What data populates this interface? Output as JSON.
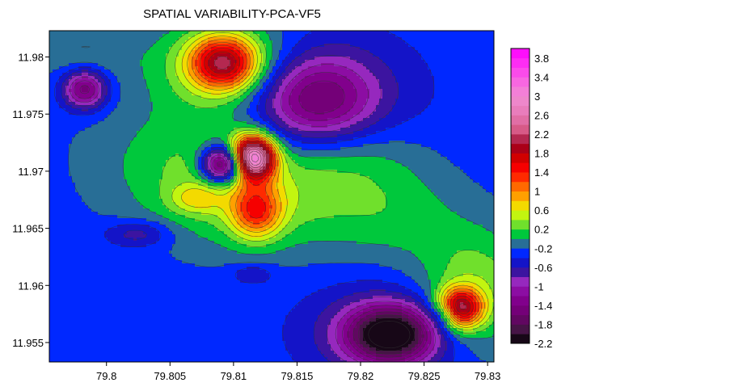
{
  "chart_data": {
    "type": "heatmap",
    "title": "SPATIAL VARIABILITY-PCA-VF5",
    "xlabel": "",
    "ylabel": "",
    "xlim": [
      79.7955,
      79.8305
    ],
    "ylim": [
      11.9533,
      11.9823
    ],
    "x_ticks": [
      "79.8",
      "79.805",
      "79.81",
      "79.815",
      "79.82",
      "79.825",
      "79.83"
    ],
    "x_tick_values": [
      79.8,
      79.805,
      79.81,
      79.815,
      79.82,
      79.825,
      79.83
    ],
    "y_ticks": [
      "11.98",
      "11.975",
      "11.97",
      "11.965",
      "11.96",
      "11.955"
    ],
    "y_tick_values": [
      11.98,
      11.975,
      11.97,
      11.965,
      11.96,
      11.955
    ],
    "colorbar": {
      "levels": [
        -2.2,
        -2.0,
        -1.8,
        -1.6,
        -1.4,
        -1.2,
        -1.0,
        -0.8,
        -0.6,
        -0.4,
        -0.2,
        0.0,
        0.2,
        0.4,
        0.6,
        0.8,
        1.0,
        1.2,
        1.4,
        1.6,
        1.8,
        2.0,
        2.2,
        2.4,
        2.6,
        2.8,
        3.0,
        3.2,
        3.4,
        3.6,
        3.8,
        4.0
      ],
      "labels": [
        "3.8",
        "3.4",
        "3",
        "2.6",
        "2.2",
        "1.8",
        "1.4",
        "1",
        "0.6",
        "0.2",
        "-0.2",
        "-0.6",
        "-1",
        "-1.4",
        "-1.8",
        "-2.2"
      ],
      "label_values": [
        3.8,
        3.4,
        3.0,
        2.6,
        2.2,
        1.8,
        1.4,
        1.0,
        0.6,
        0.2,
        -0.2,
        -0.6,
        -1.0,
        -1.4,
        -1.8,
        -2.2
      ]
    },
    "base_value": -0.3,
    "features": [
      {
        "x": 79.8092,
        "y": 11.9795,
        "amp": 1.7,
        "sx": 0.0018,
        "sy": 0.0016
      },
      {
        "x": 79.8095,
        "y": 11.9792,
        "amp": 0.9,
        "sx": 0.004,
        "sy": 0.003
      },
      {
        "x": 79.8165,
        "y": 11.9763,
        "amp": -1.1,
        "sx": 0.0032,
        "sy": 0.0026
      },
      {
        "x": 79.8155,
        "y": 11.9768,
        "amp": -0.4,
        "sx": 0.006,
        "sy": 0.004
      },
      {
        "x": 79.7983,
        "y": 11.9772,
        "amp": -1.3,
        "sx": 0.0012,
        "sy": 0.0012
      },
      {
        "x": 79.8115,
        "y": 11.9712,
        "amp": 3.2,
        "sx": 0.0012,
        "sy": 0.0013
      },
      {
        "x": 79.8118,
        "y": 11.9665,
        "amp": 1.2,
        "sx": 0.0014,
        "sy": 0.0017
      },
      {
        "x": 79.8093,
        "y": 11.9706,
        "amp": -2.2,
        "sx": 0.0012,
        "sy": 0.0011
      },
      {
        "x": 79.812,
        "y": 11.968,
        "amp": 0.6,
        "sx": 0.0055,
        "sy": 0.0035
      },
      {
        "x": 79.806,
        "y": 11.9715,
        "amp": 0.35,
        "sx": 0.0055,
        "sy": 0.004
      },
      {
        "x": 79.807,
        "y": 11.9676,
        "amp": 0.5,
        "sx": 0.0014,
        "sy": 0.0009
      },
      {
        "x": 79.8278,
        "y": 11.958,
        "amp": 2.1,
        "sx": 0.0012,
        "sy": 0.0012
      },
      {
        "x": 79.829,
        "y": 11.9595,
        "amp": 0.7,
        "sx": 0.0032,
        "sy": 0.0038
      },
      {
        "x": 79.8224,
        "y": 11.9557,
        "amp": -1.9,
        "sx": 0.0024,
        "sy": 0.0017
      },
      {
        "x": 79.822,
        "y": 11.956,
        "amp": -0.5,
        "sx": 0.0045,
        "sy": 0.003
      },
      {
        "x": 79.8025,
        "y": 11.9645,
        "amp": -0.5,
        "sx": 0.0018,
        "sy": 0.0008
      },
      {
        "x": 79.8115,
        "y": 11.961,
        "amp": -0.35,
        "sx": 0.0012,
        "sy": 0.0006
      },
      {
        "x": 79.8225,
        "y": 11.9662,
        "amp": 0.35,
        "sx": 0.004,
        "sy": 0.003
      },
      {
        "x": 79.8195,
        "y": 11.9713,
        "amp": 0.3,
        "sx": 0.004,
        "sy": 0.0025
      },
      {
        "x": 79.798,
        "y": 11.9805,
        "amp": 0.3,
        "sx": 0.003,
        "sy": 0.002
      },
      {
        "x": 79.8268,
        "y": 11.9575,
        "amp": -0.5,
        "sx": 0.0008,
        "sy": 0.0008
      }
    ]
  }
}
